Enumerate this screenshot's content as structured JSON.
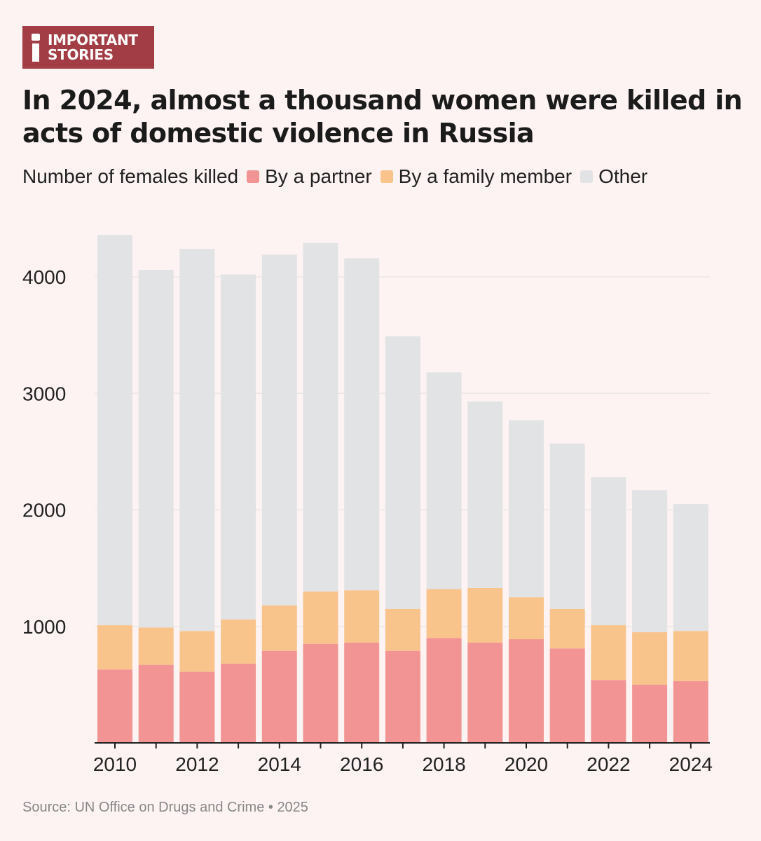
{
  "brand": {
    "line1": "IMPORTANT",
    "line2": "STORIES"
  },
  "title": "In 2024, almost a thousand women were killed in acts of domestic violence in Russia",
  "legend": {
    "label": "Number of females killed",
    "items": [
      {
        "name": "By a partner",
        "color": "#f29494"
      },
      {
        "name": "By a family member",
        "color": "#f8c48c"
      },
      {
        "name": "Other",
        "color": "#e2e3e5"
      }
    ]
  },
  "source": "Source: UN Office on Drugs and Crime • 2025",
  "chart_data": {
    "type": "bar",
    "stacked": true,
    "title": "In 2024, almost a thousand women were killed in acts of domestic violence in Russia",
    "ylabel": "Number of females killed",
    "xlabel": "",
    "categories": [
      "2010",
      "2011",
      "2012",
      "2013",
      "2014",
      "2015",
      "2016",
      "2017",
      "2018",
      "2019",
      "2020",
      "2021",
      "2022",
      "2023",
      "2024"
    ],
    "x_tick_labels": [
      "2010",
      "2012",
      "2014",
      "2016",
      "2018",
      "2020",
      "2022",
      "2024"
    ],
    "y_ticks": [
      1000,
      2000,
      3000,
      4000
    ],
    "ylim": [
      0,
      4400
    ],
    "series": [
      {
        "name": "By a partner",
        "color": "#f29494",
        "values": [
          630,
          670,
          610,
          680,
          790,
          850,
          860,
          790,
          900,
          860,
          890,
          810,
          540,
          500,
          530
        ]
      },
      {
        "name": "By a family member",
        "color": "#f8c48c",
        "values": [
          380,
          320,
          350,
          380,
          390,
          450,
          450,
          360,
          420,
          470,
          360,
          340,
          470,
          450,
          430
        ]
      },
      {
        "name": "Other",
        "color": "#e2e3e5",
        "values": [
          3350,
          3070,
          3280,
          2960,
          3010,
          2990,
          2850,
          2340,
          1860,
          1600,
          1520,
          1420,
          1270,
          1220,
          1090
        ]
      }
    ]
  }
}
